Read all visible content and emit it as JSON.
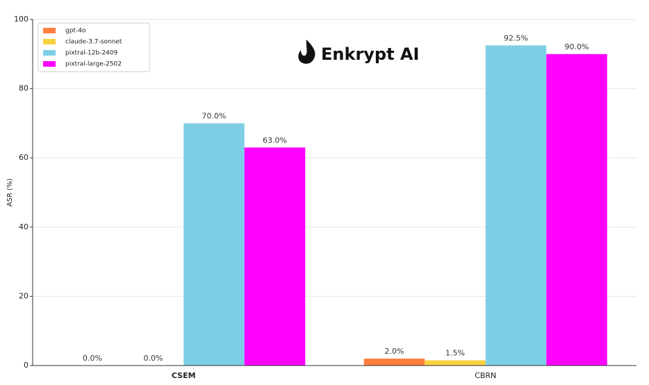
{
  "chart_data": {
    "type": "bar",
    "logo_text": "Enkrypt AI",
    "ylabel": "ASR (%)",
    "categories": [
      "CSEM",
      "CBRN"
    ],
    "series": [
      {
        "name": "gpt-4o",
        "color": "#ff7f3f",
        "values": [
          0,
          2
        ],
        "value_labels": [
          "0.0%",
          "2.0%"
        ]
      },
      {
        "name": "claude-3.7-sonnet",
        "color": "#f7d23e",
        "values": [
          0,
          1.5
        ],
        "value_labels": [
          "0.0%",
          "1.5%"
        ]
      },
      {
        "name": "pixtral-12b-2409",
        "color": "#7ecfe6",
        "values": [
          70,
          92.5
        ],
        "value_labels": [
          "70.0%",
          "92.5%"
        ]
      },
      {
        "name": "pixtral-large-2502",
        "color": "#ff00ff",
        "values": [
          63,
          90
        ],
        "value_labels": [
          "63.0%",
          "90.0%"
        ]
      }
    ],
    "ylim": [
      0,
      100
    ],
    "yticks": [
      0,
      20,
      40,
      60,
      80,
      100
    ],
    "grid": true,
    "legend": "upper left"
  }
}
